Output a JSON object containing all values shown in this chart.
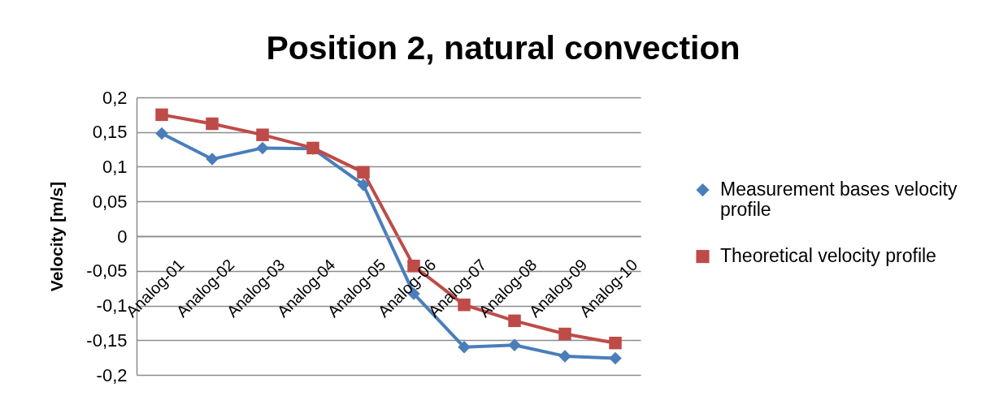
{
  "chart_data": {
    "type": "line",
    "title": "Position 2, natural convection",
    "ylabel": "Velocity [m/s]",
    "categories": [
      "Analog-01",
      "Analog-02",
      "Analog-03",
      "Analog-04",
      "Analog-05",
      "Analog-06",
      "Analog-07",
      "Analog-08",
      "Analog-09",
      "Analog-10"
    ],
    "series": [
      {
        "name": "Measurement bases velocity profile",
        "color": "#4a7ebb",
        "marker": "diamond",
        "values": [
          0.148,
          0.111,
          0.127,
          0.126,
          0.074,
          -0.083,
          -0.16,
          -0.157,
          -0.173,
          -0.176
        ]
      },
      {
        "name": "Theoretical velocity profile",
        "color": "#be4b48",
        "marker": "square",
        "values": [
          0.175,
          0.162,
          0.146,
          0.127,
          0.092,
          -0.043,
          -0.099,
          -0.122,
          -0.141,
          -0.154
        ]
      }
    ],
    "ylim": [
      -0.2,
      0.2
    ],
    "yticks": [
      {
        "value": -0.2,
        "label": "-0,2"
      },
      {
        "value": -0.15,
        "label": "-0,15"
      },
      {
        "value": -0.1,
        "label": "-0,1"
      },
      {
        "value": -0.05,
        "label": "-0,05"
      },
      0,
      {
        "value": 0.05,
        "label": "0,05"
      },
      {
        "value": 0.1,
        "label": "0,1"
      },
      {
        "value": 0.15,
        "label": "0,15"
      },
      {
        "value": 0.2,
        "label": "0,2"
      }
    ],
    "grid": "y",
    "legend": "right"
  }
}
